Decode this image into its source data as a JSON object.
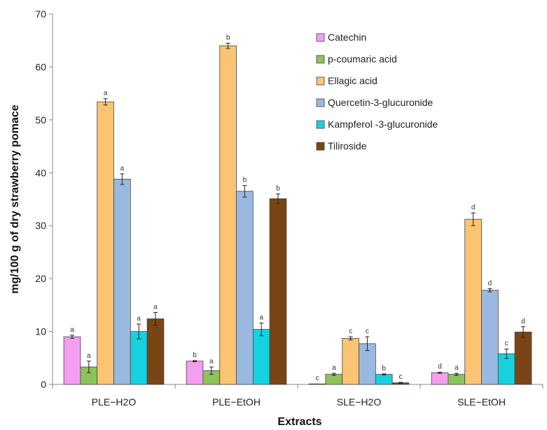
{
  "chart_data": {
    "type": "bar",
    "xlabel": "Extracts",
    "ylabel": "mg/100 g of dry strawberry pomace",
    "ylim": [
      0,
      70
    ],
    "yticks": [
      0,
      10,
      20,
      30,
      40,
      50,
      60,
      70
    ],
    "categories": [
      "PLE−H2O",
      "PLE−EtOH",
      "SLE−H2O",
      "SLE−EtOH"
    ],
    "legend_position": "top-right",
    "grid": false,
    "series": [
      {
        "name": "Catechin",
        "color": "#f49ef2",
        "values": [
          9.0,
          4.4,
          0.1,
          2.2
        ],
        "errors": [
          0.3,
          0.1,
          0.0,
          0.1
        ],
        "labels": [
          "a",
          "b",
          "c",
          "d"
        ]
      },
      {
        "name": "p-coumaric acid",
        "color": "#8cc45a",
        "values": [
          3.3,
          2.6,
          1.9,
          1.9
        ],
        "errors": [
          1.1,
          0.7,
          0.2,
          0.2
        ],
        "labels": [
          "a",
          "a",
          "a",
          "a"
        ]
      },
      {
        "name": "Ellagic acid",
        "color": "#fac472",
        "values": [
          53.4,
          64.0,
          8.7,
          31.2
        ],
        "errors": [
          0.6,
          0.5,
          0.3,
          1.2
        ],
        "labels": [
          "a",
          "b",
          "c",
          "d"
        ]
      },
      {
        "name": "Quercetin-3-glucuronide",
        "color": "#9ab9e1",
        "values": [
          38.8,
          36.5,
          7.7,
          17.8
        ],
        "errors": [
          1.0,
          1.1,
          1.3,
          0.3
        ],
        "labels": [
          "a",
          "b",
          "c",
          "d"
        ]
      },
      {
        "name": "Kampferol -3-glucuronide",
        "color": "#16d2e0",
        "values": [
          10.0,
          10.4,
          1.9,
          5.8
        ],
        "errors": [
          1.4,
          1.2,
          0.1,
          0.9
        ],
        "labels": [
          "a",
          "a",
          "b",
          "c"
        ]
      },
      {
        "name": "Tiliroside",
        "color": "#7a4514",
        "values": [
          12.4,
          35.1,
          0.3,
          9.9
        ],
        "errors": [
          1.2,
          0.9,
          0.1,
          1.0
        ],
        "labels": [
          "a",
          "b",
          "c",
          "d"
        ]
      }
    ]
  }
}
